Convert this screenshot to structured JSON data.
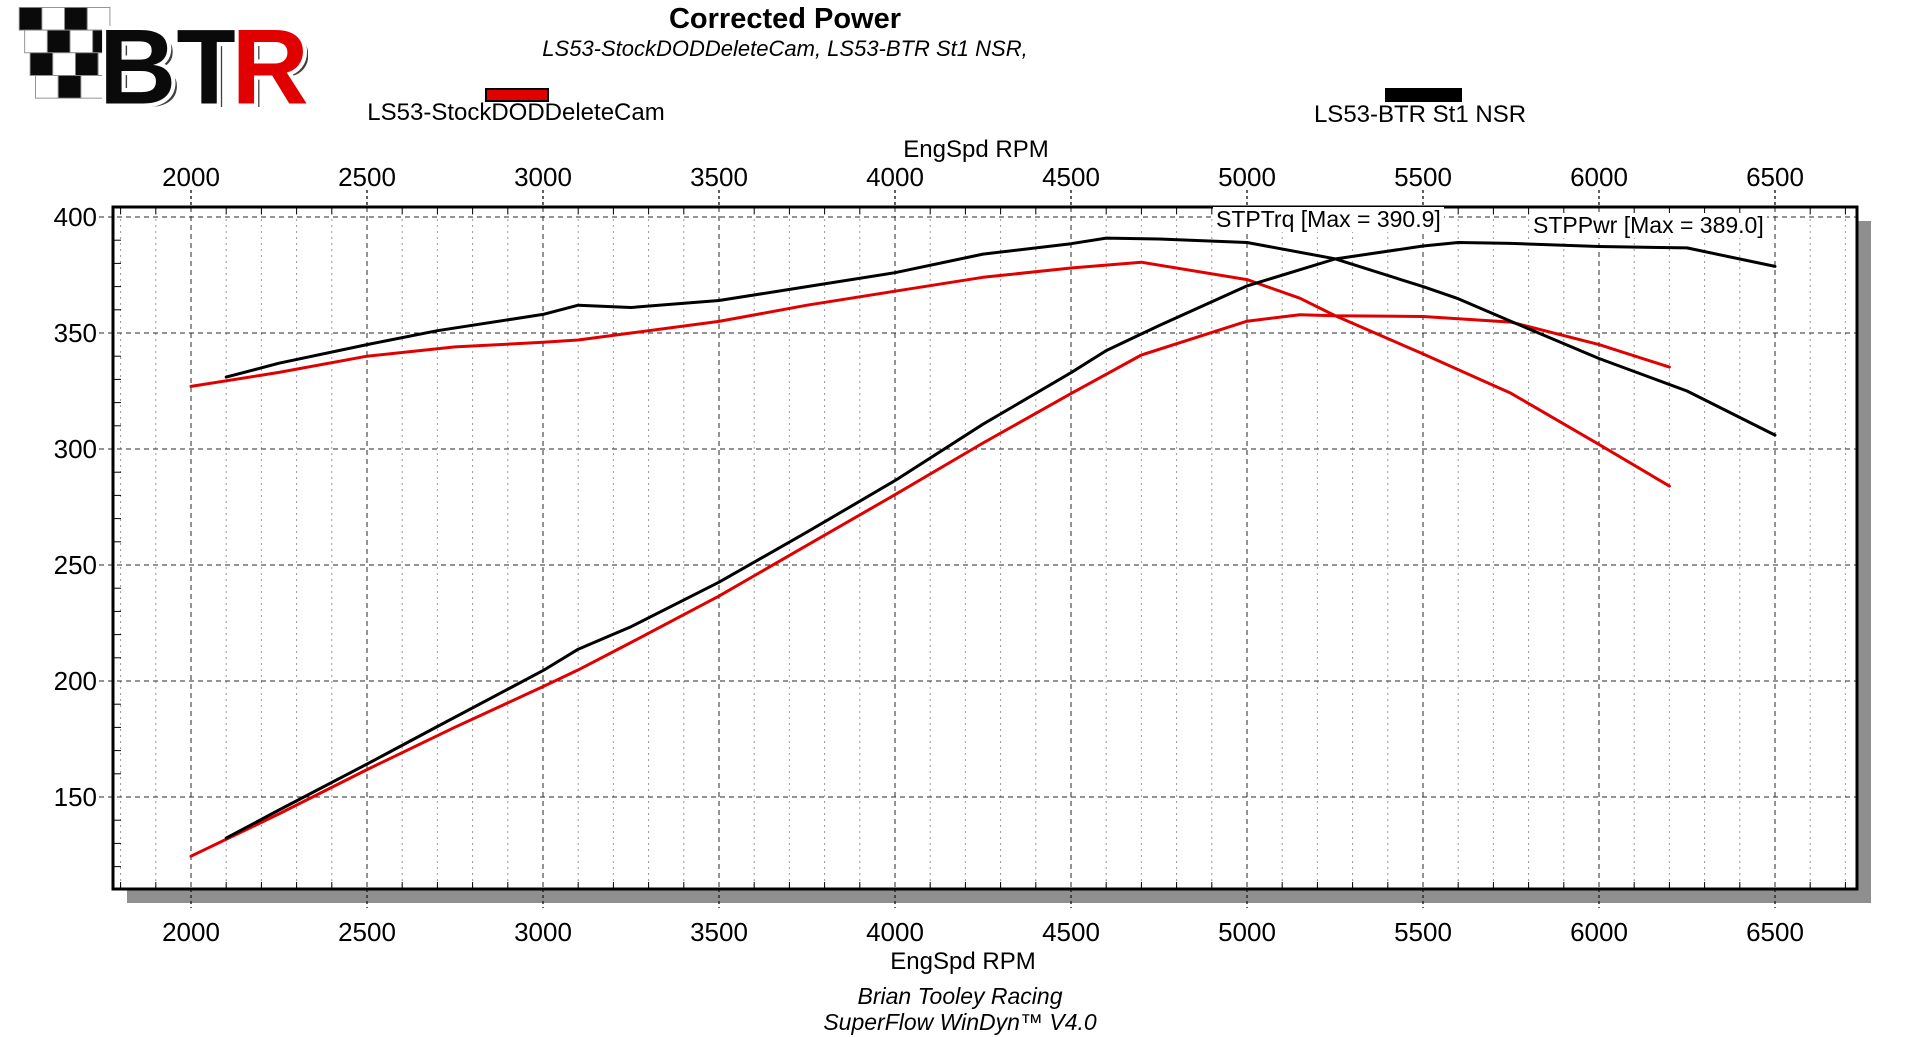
{
  "logo": {
    "bt": "BT",
    "r": "R",
    "red": "#e00000"
  },
  "header": {
    "title": "Corrected Power",
    "subtitle": "LS53-StockDODDeleteCam, LS53-BTR St1 NSR,"
  },
  "legend": [
    {
      "label": "LS53-StockDODDeleteCam",
      "color": "#e00000"
    },
    {
      "label": "LS53-BTR St1 NSR",
      "color": "#000000"
    }
  ],
  "axes": {
    "top_label": "EngSpd RPM",
    "bottom_label": "EngSpd RPM"
  },
  "annotations": [
    {
      "text": "STPTrq [Max = 390.9]"
    },
    {
      "text": "STPPwr [Max = 389.0]"
    }
  ],
  "footer": {
    "line1": "Brian Tooley Racing",
    "line2": "SuperFlow WinDyn™ V4.0"
  },
  "chart_data": {
    "type": "line",
    "title": "Corrected Power",
    "subtitle": "LS53-StockDODDeleteCam, LS53-BTR St1 NSR,",
    "xlabel": "EngSpd RPM",
    "ylabel": "",
    "x_ticks": [
      2000,
      2500,
      3000,
      3500,
      4000,
      4500,
      5000,
      5500,
      6000,
      6500
    ],
    "y_ticks": [
      150,
      200,
      250,
      300,
      350,
      400
    ],
    "xlim": [
      1778,
      6733
    ],
    "ylim": [
      110,
      404
    ],
    "minor_x_step": 100,
    "minor_y_step": 10,
    "grid": "dashed major gridlines, dotted 100-rpm minor verticals",
    "legend_position": "top",
    "annotations": [
      {
        "text": "STPTrq [Max = 390.9]",
        "x_rpm": 4910,
        "y_val": 398
      },
      {
        "text": "STPPwr [Max = 389.0]",
        "x_rpm": 5810,
        "y_val": 396
      }
    ],
    "series": [
      {
        "name": "LS53-StockDODDeleteCam STPTrq (lb-ft)",
        "color": "#e00000",
        "points": [
          [
            2000,
            327
          ],
          [
            2250,
            333
          ],
          [
            2500,
            340
          ],
          [
            2750,
            344
          ],
          [
            3000,
            346
          ],
          [
            3100,
            347
          ],
          [
            3250,
            350
          ],
          [
            3500,
            355
          ],
          [
            3750,
            362
          ],
          [
            4000,
            368
          ],
          [
            4250,
            374
          ],
          [
            4500,
            378
          ],
          [
            4700,
            380.5
          ],
          [
            5000,
            373
          ],
          [
            5150,
            365
          ],
          [
            5250,
            357.5
          ],
          [
            5500,
            341
          ],
          [
            5750,
            324
          ],
          [
            6000,
            302
          ],
          [
            6200,
            284
          ]
        ]
      },
      {
        "name": "LS53-StockDODDeleteCam STPPwr (hp)",
        "color": "#e00000",
        "points": [
          [
            2000,
            124.5
          ],
          [
            2250,
            142.7
          ],
          [
            2500,
            161.8
          ],
          [
            2750,
            180.1
          ],
          [
            3000,
            197.6
          ],
          [
            3100,
            204.8
          ],
          [
            3250,
            216.6
          ],
          [
            3500,
            236.6
          ],
          [
            3750,
            258.5
          ],
          [
            4000,
            280.3
          ],
          [
            4250,
            302.6
          ],
          [
            4500,
            323.9
          ],
          [
            4700,
            340.5
          ],
          [
            5000,
            355.1
          ],
          [
            5150,
            357.9
          ],
          [
            5250,
            357.4
          ],
          [
            5500,
            357.1
          ],
          [
            5750,
            354.7
          ],
          [
            6000,
            345.0
          ],
          [
            6200,
            335.3
          ]
        ]
      },
      {
        "name": "LS53-BTR St1 NSR STPTrq (lb-ft)",
        "color": "#000000",
        "points": [
          [
            2100,
            331
          ],
          [
            2250,
            337
          ],
          [
            2500,
            345
          ],
          [
            2700,
            351
          ],
          [
            3000,
            358
          ],
          [
            3100,
            362
          ],
          [
            3250,
            361
          ],
          [
            3500,
            364
          ],
          [
            3750,
            370
          ],
          [
            4000,
            376
          ],
          [
            4250,
            384
          ],
          [
            4500,
            388.5
          ],
          [
            4600,
            390.9
          ],
          [
            4750,
            390.5
          ],
          [
            5000,
            389
          ],
          [
            5250,
            382
          ],
          [
            5500,
            370
          ],
          [
            5600,
            364.8
          ],
          [
            5750,
            355
          ],
          [
            6000,
            339
          ],
          [
            6250,
            325
          ],
          [
            6500,
            306
          ]
        ]
      },
      {
        "name": "LS53-BTR St1 NSR STPPwr (hp)",
        "color": "#000000",
        "points": [
          [
            2100,
            132.3
          ],
          [
            2250,
            144.4
          ],
          [
            2500,
            164.2
          ],
          [
            2700,
            180.4
          ],
          [
            3000,
            204.5
          ],
          [
            3100,
            213.7
          ],
          [
            3250,
            223.4
          ],
          [
            3500,
            242.6
          ],
          [
            3750,
            264.2
          ],
          [
            4000,
            286.4
          ],
          [
            4250,
            310.7
          ],
          [
            4500,
            332.9
          ],
          [
            4600,
            342.4
          ],
          [
            4750,
            353.2
          ],
          [
            5000,
            370.3
          ],
          [
            5250,
            381.9
          ],
          [
            5500,
            387.5
          ],
          [
            5600,
            389.0
          ],
          [
            5750,
            388.6
          ],
          [
            6000,
            387.3
          ],
          [
            6250,
            386.7
          ],
          [
            6500,
            378.7
          ]
        ]
      }
    ]
  }
}
